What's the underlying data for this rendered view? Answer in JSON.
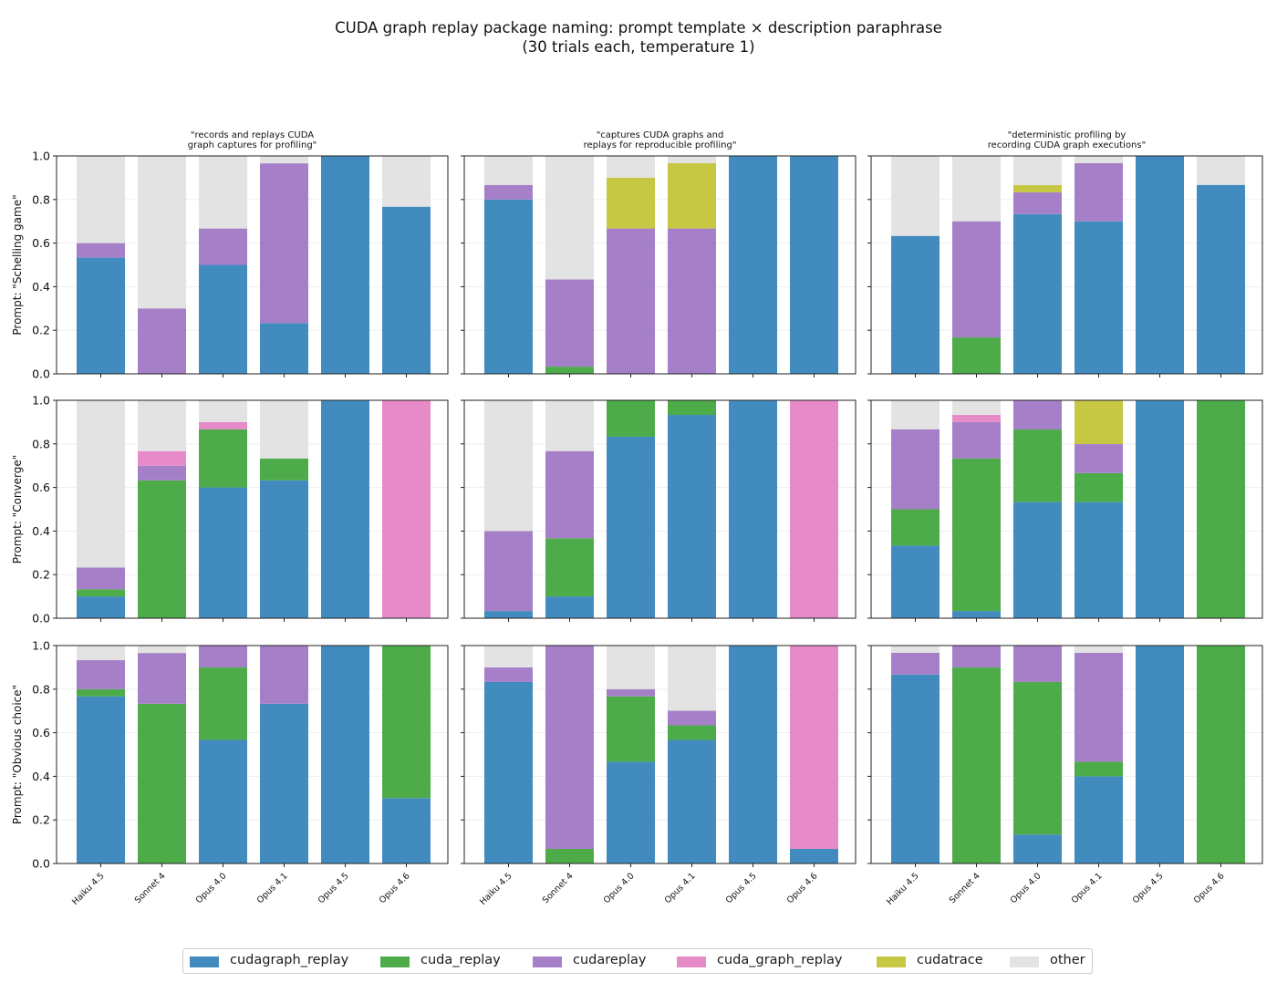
{
  "chart_data": {
    "type": "bar",
    "stacked": true,
    "title": "CUDA graph replay package naming: prompt template × description paraphrase",
    "subtitle": "(30 trials each, temperature 1)",
    "columns": [
      "\"records and replays CUDA\ngraph captures for profiling\"",
      "\"captures CUDA graphs and\nreplays for reproducible profiling\"",
      "\"deterministic profiling by\nrecording CUDA graph executions\""
    ],
    "rows": [
      "Prompt: \"Schelling game\"",
      "Prompt: \"Converge\"",
      "Prompt: \"Obvious choice\""
    ],
    "categories": [
      "Haiku 4.5",
      "Sonnet 4",
      "Opus 4.0",
      "Opus 4.1",
      "Opus 4.5",
      "Opus 4.6"
    ],
    "ylim": [
      0,
      1
    ],
    "yticks": [
      "0.0",
      "0.2",
      "0.4",
      "0.6",
      "0.8",
      "1.0"
    ],
    "series": [
      {
        "name": "cudagraph_replay",
        "color": "#428bbf"
      },
      {
        "name": "cuda_replay",
        "color": "#4dab4a"
      },
      {
        "name": "cudareplay",
        "color": "#a57fc8"
      },
      {
        "name": "cuda_graph_replay",
        "color": "#e78bc8"
      },
      {
        "name": "cudatrace",
        "color": "#c6c742"
      },
      {
        "name": "other",
        "color": "#e3e3e3"
      }
    ],
    "panels": [
      [
        {
          "cudagraph_replay": [
            0.533,
            0,
            0.5,
            0.233,
            1,
            0.767
          ],
          "cuda_replay": [
            0,
            0,
            0,
            0,
            0,
            0
          ],
          "cudareplay": [
            0.067,
            0.3,
            0.167,
            0.733,
            0,
            0
          ],
          "cuda_graph_replay": [
            0,
            0,
            0,
            0,
            0,
            0
          ],
          "cudatrace": [
            0,
            0,
            0,
            0,
            0,
            0
          ],
          "other": [
            0.4,
            0.7,
            0.333,
            0.033,
            0,
            0.233
          ]
        },
        {
          "cudagraph_replay": [
            0.8,
            0,
            0,
            0,
            1,
            1
          ],
          "cuda_replay": [
            0,
            0.033,
            0,
            0,
            0,
            0
          ],
          "cudareplay": [
            0.067,
            0.4,
            0.667,
            0.667,
            0,
            0
          ],
          "cuda_graph_replay": [
            0,
            0,
            0,
            0,
            0,
            0
          ],
          "cudatrace": [
            0,
            0,
            0.233,
            0.3,
            0,
            0
          ],
          "other": [
            0.133,
            0.567,
            0.1,
            0.033,
            0,
            0
          ]
        },
        {
          "cudagraph_replay": [
            0.633,
            0,
            0.733,
            0.7,
            1,
            0.867
          ],
          "cuda_replay": [
            0,
            0.167,
            0,
            0,
            0,
            0
          ],
          "cudareplay": [
            0,
            0.533,
            0.1,
            0.267,
            0,
            0
          ],
          "cuda_graph_replay": [
            0,
            0,
            0,
            0,
            0,
            0
          ],
          "cudatrace": [
            0,
            0,
            0.033,
            0,
            0,
            0
          ],
          "other": [
            0.367,
            0.3,
            0.133,
            0.033,
            0,
            0.133
          ]
        }
      ],
      [
        {
          "cudagraph_replay": [
            0.1,
            0,
            0.6,
            0.633,
            1,
            0
          ],
          "cuda_replay": [
            0.033,
            0.633,
            0.267,
            0.1,
            0,
            0
          ],
          "cudareplay": [
            0.1,
            0.067,
            0,
            0,
            0,
            0
          ],
          "cuda_graph_replay": [
            0,
            0.067,
            0.033,
            0,
            0,
            1
          ],
          "cudatrace": [
            0,
            0,
            0,
            0,
            0,
            0
          ],
          "other": [
            0.767,
            0.233,
            0.1,
            0.267,
            0,
            0
          ]
        },
        {
          "cudagraph_replay": [
            0.033,
            0.1,
            0.833,
            0.933,
            1,
            0
          ],
          "cuda_replay": [
            0,
            0.267,
            0.167,
            0.067,
            0,
            0
          ],
          "cudareplay": [
            0.367,
            0.4,
            0,
            0,
            0,
            0
          ],
          "cuda_graph_replay": [
            0,
            0,
            0,
            0,
            0,
            1
          ],
          "cudatrace": [
            0,
            0,
            0,
            0,
            0,
            0
          ],
          "other": [
            0.6,
            0.233,
            0,
            0,
            0,
            0
          ]
        },
        {
          "cudagraph_replay": [
            0.333,
            0.033,
            0.533,
            0.533,
            1,
            0
          ],
          "cuda_replay": [
            0.167,
            0.7,
            0.333,
            0.133,
            0,
            1
          ],
          "cudareplay": [
            0.367,
            0.167,
            0.133,
            0.133,
            0,
            0
          ],
          "cuda_graph_replay": [
            0,
            0.033,
            0,
            0,
            0,
            0
          ],
          "cudatrace": [
            0,
            0,
            0,
            0.2,
            0,
            0
          ],
          "other": [
            0.133,
            0.067,
            0,
            0,
            0,
            0
          ]
        }
      ],
      [
        {
          "cudagraph_replay": [
            0.767,
            0,
            0.567,
            0.733,
            1,
            0.3
          ],
          "cuda_replay": [
            0.033,
            0.733,
            0.333,
            0,
            0,
            0.7
          ],
          "cudareplay": [
            0.133,
            0.233,
            0.1,
            0.267,
            0,
            0
          ],
          "cuda_graph_replay": [
            0,
            0,
            0,
            0,
            0,
            0
          ],
          "cudatrace": [
            0,
            0,
            0,
            0,
            0,
            0
          ],
          "other": [
            0.067,
            0.033,
            0,
            0,
            0,
            0
          ]
        },
        {
          "cudagraph_replay": [
            0.833,
            0,
            0.467,
            0.567,
            1,
            0.067
          ],
          "cuda_replay": [
            0,
            0.067,
            0.3,
            0.067,
            0,
            0
          ],
          "cudareplay": [
            0.067,
            0.933,
            0.033,
            0.067,
            0,
            0
          ],
          "cuda_graph_replay": [
            0,
            0,
            0,
            0,
            0,
            0.933
          ],
          "cudatrace": [
            0,
            0,
            0,
            0,
            0,
            0
          ],
          "other": [
            0.1,
            0,
            0.2,
            0.3,
            0,
            0
          ]
        },
        {
          "cudagraph_replay": [
            0.867,
            0,
            0.133,
            0.4,
            1,
            0
          ],
          "cuda_replay": [
            0,
            0.9,
            0.7,
            0.067,
            0,
            1
          ],
          "cudareplay": [
            0.1,
            0.1,
            0.167,
            0.5,
            0,
            0
          ],
          "cuda_graph_replay": [
            0,
            0,
            0,
            0,
            0,
            0
          ],
          "cudatrace": [
            0,
            0,
            0,
            0,
            0,
            0
          ],
          "other": [
            0.033,
            0,
            0,
            0.033,
            0,
            0
          ]
        }
      ]
    ],
    "legend": {
      "position": "bottom-center"
    }
  }
}
